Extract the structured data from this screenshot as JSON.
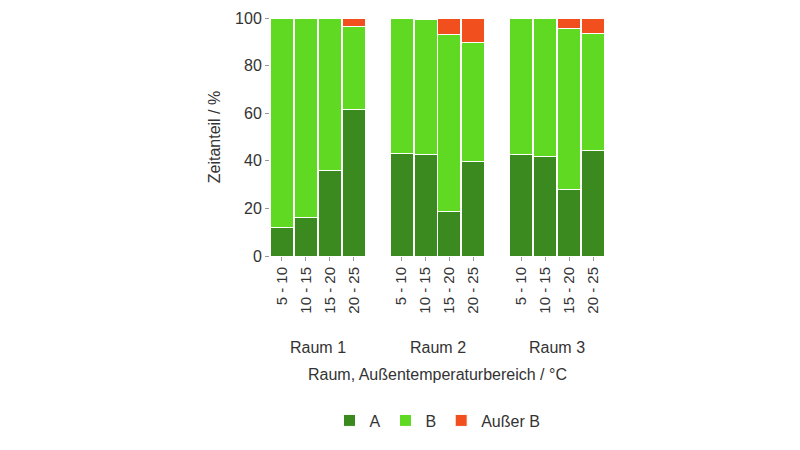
{
  "chart_data": {
    "type": "bar",
    "stacked": true,
    "grid": false,
    "legend": "bottom",
    "y_label": "Zeitanteil / %",
    "x_label": "Raum, Außentemperaturbereich / °C",
    "groups": [
      "Raum 1",
      "Raum 2",
      "Raum 3"
    ],
    "categories": [
      "5 - 10",
      "10 - 15",
      "15 - 20",
      "20 - 25"
    ],
    "ylim": [
      0,
      100
    ],
    "yticks": [
      0,
      20,
      40,
      60,
      80,
      100
    ],
    "series": [
      {
        "name": "A",
        "color": "#3b8a1f",
        "values": [
          [
            12,
            16,
            36,
            61.5
          ],
          [
            43,
            42.5,
            18.5,
            39.5
          ],
          [
            42.5,
            42,
            28,
            44.5
          ]
        ]
      },
      {
        "name": "B",
        "color": "#5fd922",
        "values": [
          [
            88,
            84,
            64,
            35
          ],
          [
            57,
            57,
            74.5,
            50
          ],
          [
            57.5,
            58,
            67.5,
            49
          ]
        ]
      },
      {
        "name": "Außer B",
        "color": "#f24f1e",
        "values": [
          [
            0,
            0,
            0,
            3.5
          ],
          [
            0,
            0.5,
            7,
            10.5
          ],
          [
            0,
            0,
            4.5,
            6.5
          ]
        ]
      }
    ]
  }
}
